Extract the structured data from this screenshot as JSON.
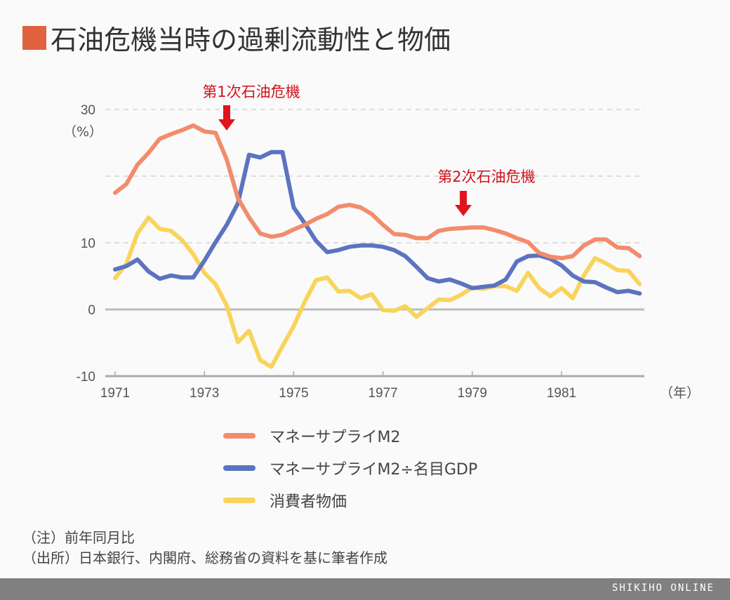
{
  "title": "石油危機当時の過剰流動性と物価",
  "chart_data": {
    "type": "line",
    "title": "石油危機当時の過剰流動性と物価",
    "ylabel": "（%）",
    "xlabel": "（年）",
    "ylim": [
      -10,
      30
    ],
    "yticks": [
      -10,
      0,
      10,
      30
    ],
    "ytick_labels": [
      "-10",
      "0",
      "10",
      "30"
    ],
    "ygrid": [
      10,
      20,
      30
    ],
    "xlim": [
      1971,
      1983
    ],
    "xticks": [
      1971,
      1973,
      1975,
      1977,
      1979,
      1981
    ],
    "xtick_labels": [
      "1971",
      "1973",
      "1975",
      "1977",
      "1979",
      "1981"
    ],
    "x_start": 1971,
    "x_step": 0.25,
    "grid": true,
    "legend_placement": "bottom",
    "series": [
      {
        "name": "マネーサプライM2",
        "color": "#f28c6c",
        "values": [
          17.5,
          18.8,
          21.7,
          23.5,
          25.6,
          26.3,
          26.9,
          27.6,
          26.7,
          26.5,
          22.5,
          16.7,
          13.8,
          11.4,
          10.9,
          11.2,
          12.0,
          12.7,
          13.6,
          14.3,
          15.4,
          15.7,
          15.3,
          14.3,
          12.7,
          11.3,
          11.2,
          10.7,
          10.7,
          11.8,
          12.1,
          12.2,
          12.3,
          12.3,
          11.9,
          11.4,
          10.7,
          10.1,
          8.5,
          7.9,
          7.7,
          8.0,
          9.6,
          10.5,
          10.5,
          9.3,
          9.2,
          8.0
        ]
      },
      {
        "name": "マネーサプライM2÷名目GDP",
        "color": "#5b73c0",
        "values": [
          6.0,
          6.5,
          7.5,
          5.7,
          4.6,
          5.1,
          4.8,
          4.8,
          7.3,
          10.1,
          12.7,
          15.9,
          23.2,
          22.8,
          23.6,
          23.6,
          15.3,
          12.9,
          10.3,
          8.6,
          8.9,
          9.4,
          9.6,
          9.6,
          9.4,
          8.9,
          8.0,
          6.4,
          4.7,
          4.2,
          4.5,
          3.9,
          3.2,
          3.4,
          3.6,
          4.5,
          7.2,
          8.0,
          8.1,
          7.6,
          6.6,
          5.1,
          4.2,
          4.1,
          3.3,
          2.6,
          2.8,
          2.4
        ]
      },
      {
        "name": "消費者物価",
        "color": "#f9d45c",
        "values": [
          4.7,
          6.8,
          11.4,
          13.8,
          12.1,
          11.8,
          10.4,
          8.3,
          5.5,
          3.8,
          0.6,
          -4.9,
          -3.2,
          -7.6,
          -8.6,
          -5.5,
          -2.5,
          1.2,
          4.4,
          4.8,
          2.7,
          2.8,
          1.7,
          2.3,
          -0.1,
          -0.2,
          0.5,
          -1.1,
          0.2,
          1.5,
          1.4,
          2.2,
          3.3,
          3.1,
          3.5,
          3.5,
          2.8,
          5.5,
          3.2,
          2.0,
          3.2,
          1.7,
          5.1,
          7.7,
          6.9,
          5.9,
          5.8,
          3.8
        ]
      }
    ],
    "annotations": [
      {
        "text": "第1次石油危機",
        "x": 1973.5,
        "color": "#d0121b"
      },
      {
        "text": "第2次石油危機",
        "x": 1978.8,
        "color": "#d0121b"
      }
    ]
  },
  "notes": [
    "（注）前年同月比",
    "（出所）日本銀行、内閣府、総務省の資料を基に筆者作成"
  ],
  "footer": "SHIKIHO ONLINE",
  "colors": {
    "title_mark": "#e0623f",
    "arrow": "#e0141e",
    "footer_bg": "#808080"
  }
}
